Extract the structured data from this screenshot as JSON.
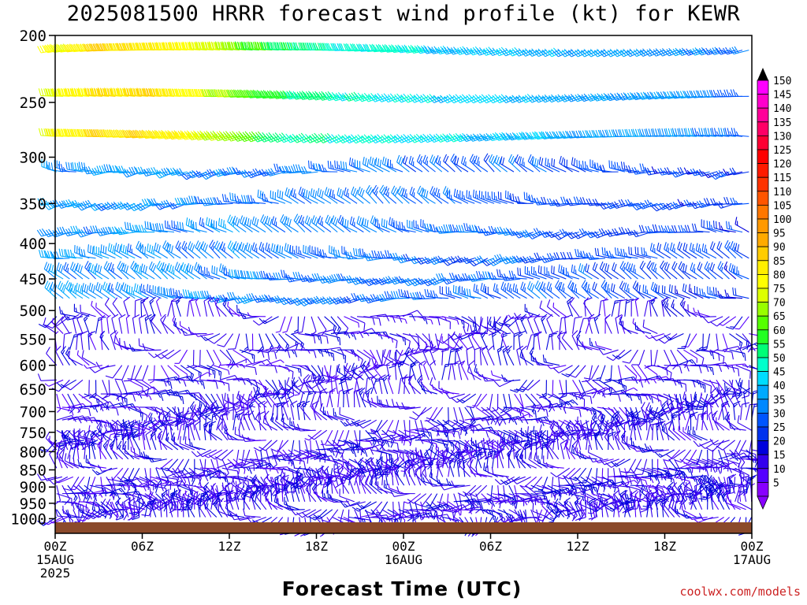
{
  "title": "2025081500 HRRR forecast wind profile (kt) for KEWR",
  "xlabel": "Forecast Time (UTC)",
  "credit": "coolwx.com/models",
  "colors": {
    "ground": "#8b4a2b",
    "frame": "#000000"
  },
  "chart_data": {
    "type": "wind-barb time-height",
    "x_range_hours": [
      0,
      48
    ],
    "y_range_hPa": [
      200,
      1050
    ],
    "y_scale": "log-pressure",
    "y_ticks": [
      "200",
      "250",
      "300",
      "350",
      "400",
      "450",
      "500",
      "550",
      "600",
      "650",
      "700",
      "750",
      "800",
      "850",
      "900",
      "950",
      "1000"
    ],
    "x_ticks": [
      {
        "hour": 0,
        "lines": [
          "00Z",
          "15AUG",
          "2025"
        ]
      },
      {
        "hour": 6,
        "lines": [
          "06Z"
        ]
      },
      {
        "hour": 12,
        "lines": [
          "12Z"
        ]
      },
      {
        "hour": 18,
        "lines": [
          "18Z"
        ]
      },
      {
        "hour": 24,
        "lines": [
          "00Z",
          "16AUG"
        ]
      },
      {
        "hour": 30,
        "lines": [
          "06Z"
        ]
      },
      {
        "hour": 36,
        "lines": [
          "12Z"
        ]
      },
      {
        "hour": 42,
        "lines": [
          "18Z"
        ]
      },
      {
        "hour": 48,
        "lines": [
          "00Z",
          "17AUG"
        ]
      }
    ],
    "colorbar": {
      "labels": [
        "150",
        "145",
        "140",
        "135",
        "130",
        "125",
        "120",
        "115",
        "110",
        "105",
        "100",
        "95",
        "90",
        "85",
        "80",
        "75",
        "70",
        "65",
        "60",
        "55",
        "50",
        "45",
        "40",
        "35",
        "30",
        "25",
        "20",
        "15",
        "10",
        "5"
      ],
      "colors": [
        "#ff00ff",
        "#ff00cc",
        "#ff0099",
        "#ff0066",
        "#ff0033",
        "#ff0000",
        "#ff1a00",
        "#ff3300",
        "#ff5500",
        "#ff7700",
        "#ff9900",
        "#ffaa00",
        "#ffcc00",
        "#ffee00",
        "#ffff00",
        "#ddff00",
        "#99ff00",
        "#55ff00",
        "#22ff22",
        "#00ff77",
        "#00ffcc",
        "#00ddff",
        "#00aaff",
        "#0088ff",
        "#0055ff",
        "#0033ee",
        "#0000dd",
        "#3300ee",
        "#5500ff",
        "#8800ff"
      ]
    }
  }
}
